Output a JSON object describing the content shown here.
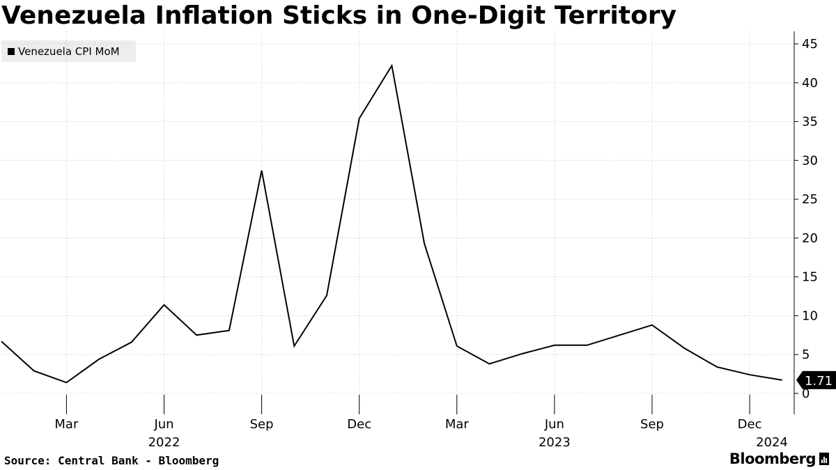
{
  "header": {
    "title": "Venezuela Inflation Sticks in One-Digit Territory"
  },
  "legend": {
    "label": "Venezuela CPI MoM",
    "color": "#000000"
  },
  "footer": {
    "source": "Source: Central Bank - Bloomberg",
    "brand": "Bloomberg"
  },
  "last_value_label": "1.71",
  "chart_data": {
    "type": "line",
    "title": "Venezuela Inflation Sticks in One-Digit Territory",
    "xlabel": "",
    "ylabel": "",
    "y_axis_side": "right",
    "ylim": [
      -2.5,
      45
    ],
    "yticks": [
      0,
      5,
      10,
      15,
      20,
      25,
      30,
      35,
      40,
      45
    ],
    "x_tick_labels": [
      {
        "month": "2022-03",
        "label": "Mar",
        "year_label": ""
      },
      {
        "month": "2022-06",
        "label": "Jun",
        "year_label": "2022"
      },
      {
        "month": "2022-09",
        "label": "Sep",
        "year_label": ""
      },
      {
        "month": "2022-12",
        "label": "Dec",
        "year_label": ""
      },
      {
        "month": "2023-03",
        "label": "Mar",
        "year_label": ""
      },
      {
        "month": "2023-06",
        "label": "Jun",
        "year_label": "2023"
      },
      {
        "month": "2023-09",
        "label": "Sep",
        "year_label": ""
      },
      {
        "month": "2023-12",
        "label": "Dec",
        "year_label": ""
      },
      {
        "month": "2024-03",
        "label": "",
        "year_label": "2024"
      }
    ],
    "grid": true,
    "legend_position": "top-left",
    "series": [
      {
        "name": "Venezuela CPI MoM",
        "color": "#000000",
        "x": [
          "2022-01",
          "2022-02",
          "2022-03",
          "2022-04",
          "2022-05",
          "2022-06",
          "2022-07",
          "2022-08",
          "2022-09",
          "2022-10",
          "2022-11",
          "2022-12",
          "2023-01",
          "2023-02",
          "2023-03",
          "2023-04",
          "2023-05",
          "2023-06",
          "2023-07",
          "2023-08",
          "2023-09",
          "2023-10",
          "2023-11",
          "2023-12",
          "2024-01"
        ],
        "values": [
          6.7,
          2.9,
          1.4,
          4.4,
          6.6,
          11.4,
          7.5,
          8.1,
          28.7,
          6.1,
          12.6,
          35.4,
          42.2,
          19.3,
          6.1,
          3.8,
          5.1,
          6.2,
          6.2,
          7.5,
          8.8,
          5.8,
          3.4,
          2.4,
          1.71
        ]
      }
    ]
  }
}
